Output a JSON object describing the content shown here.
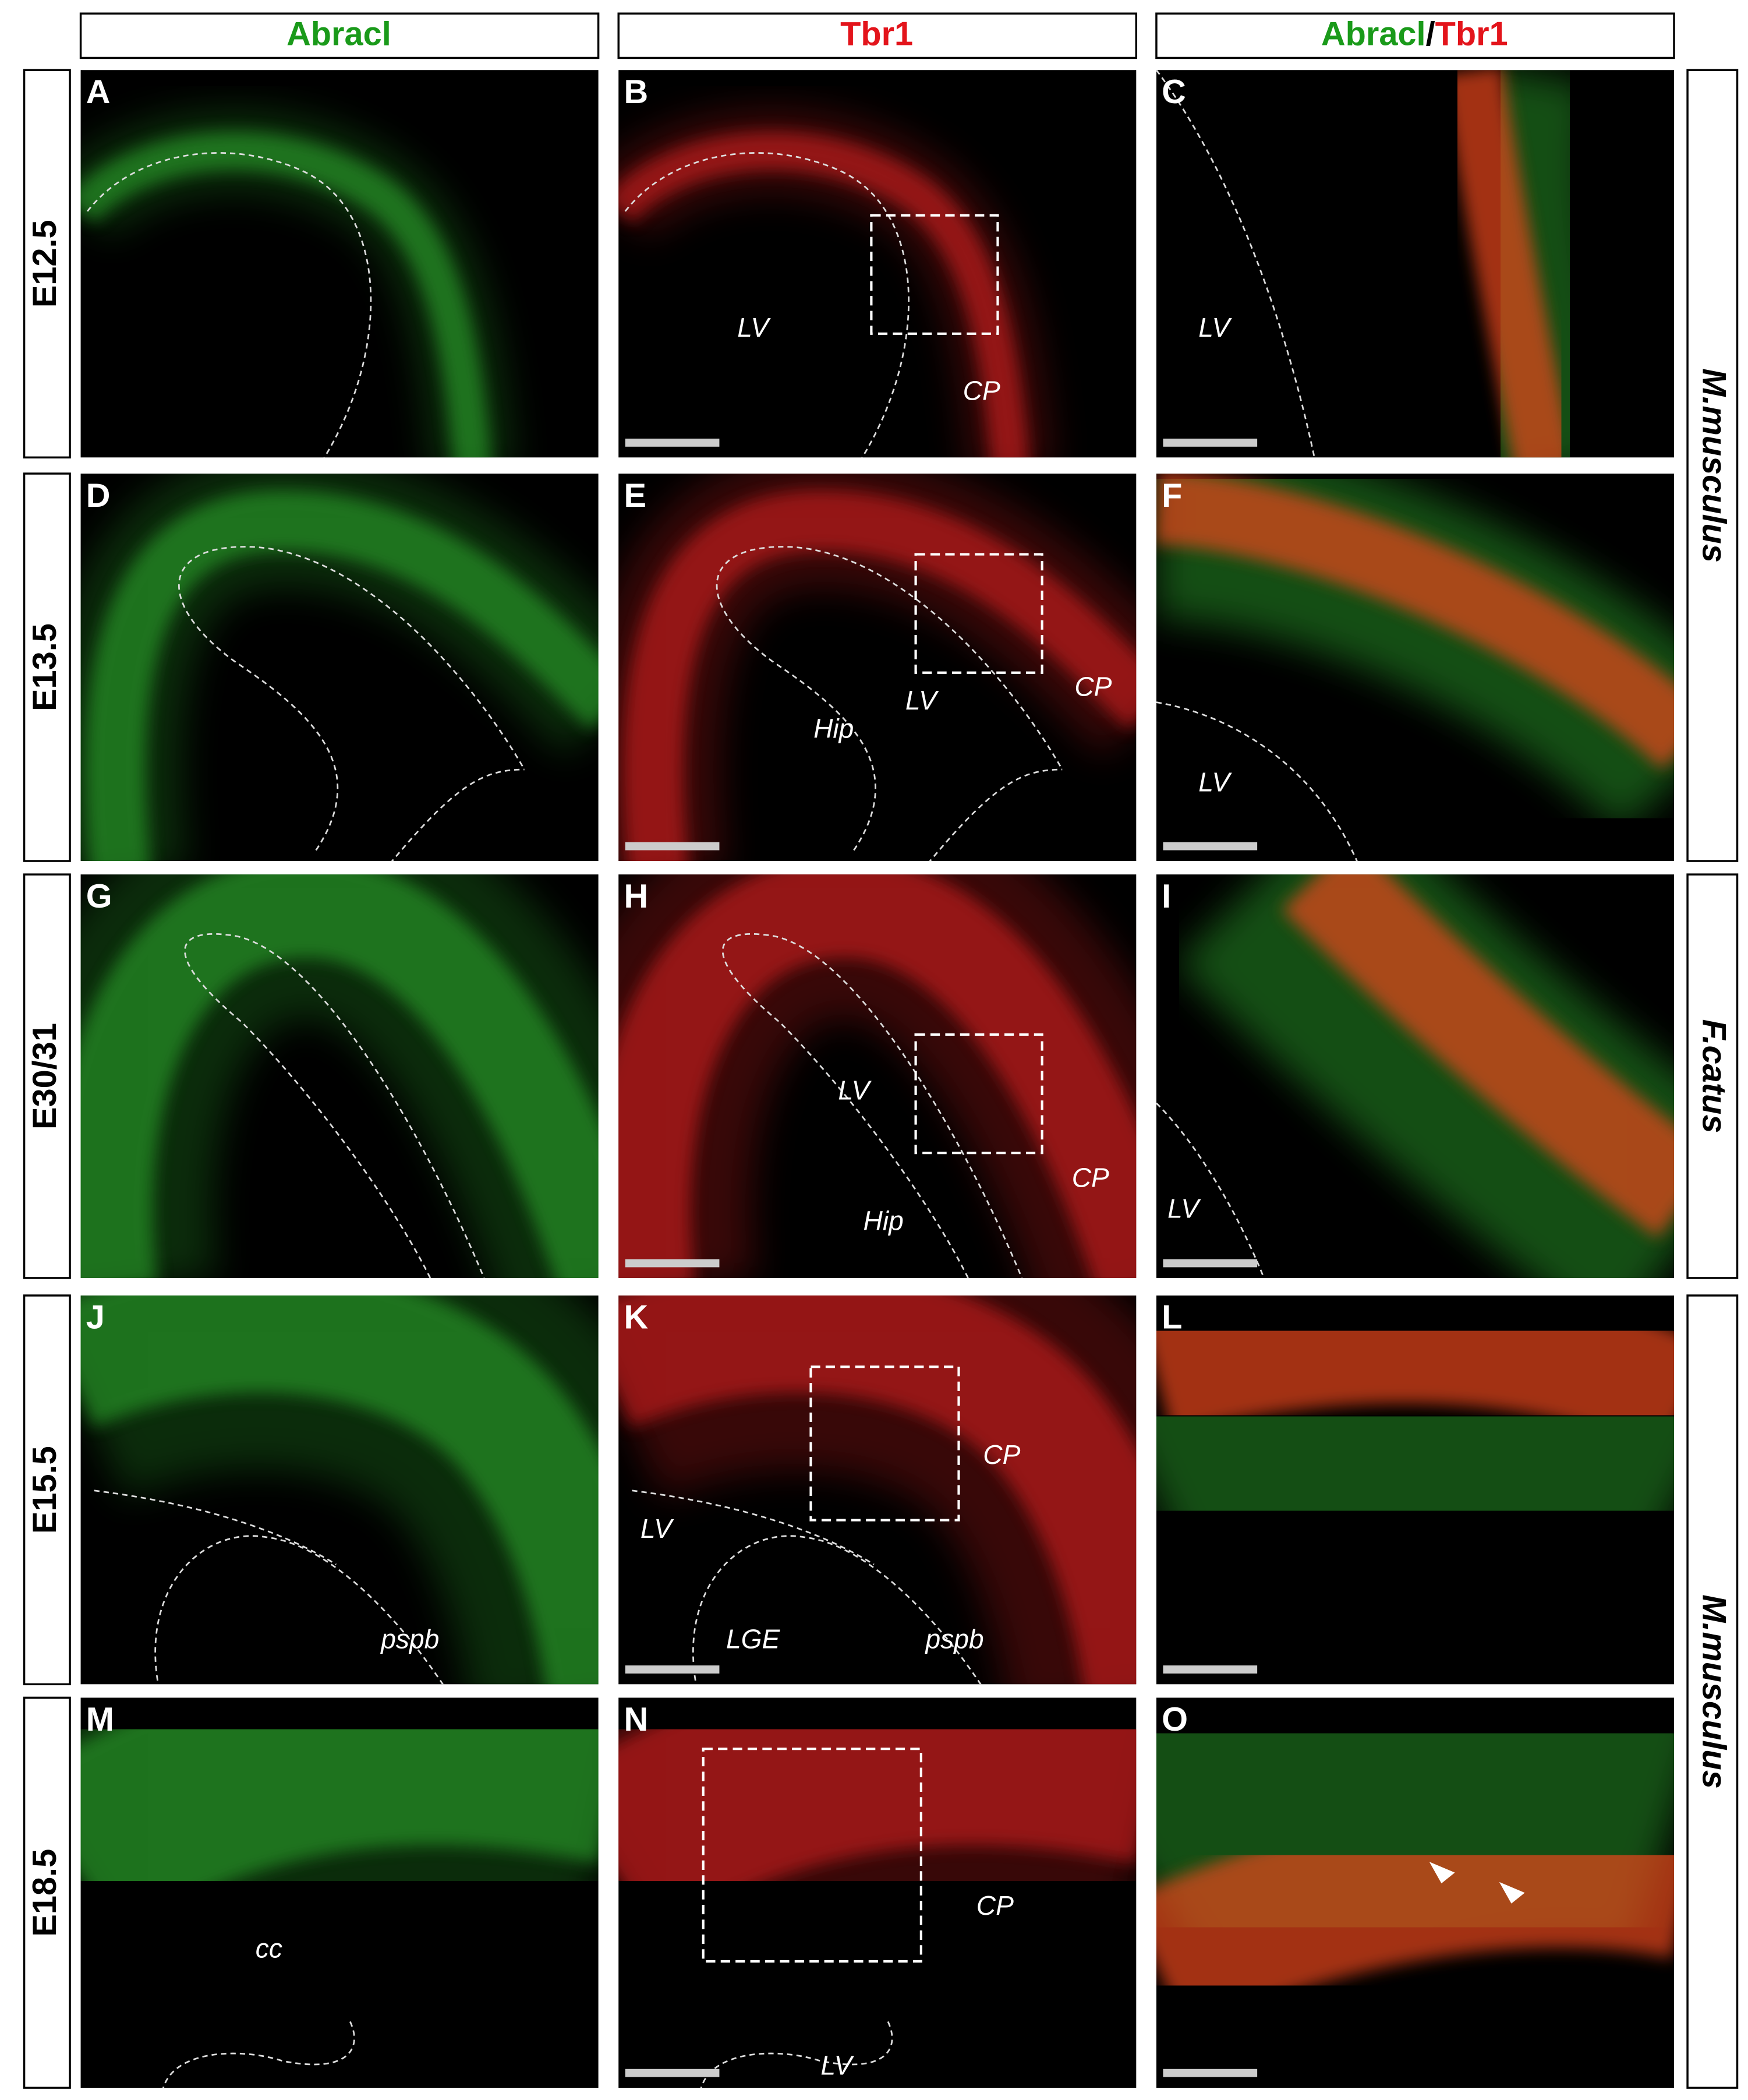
{
  "headers": [
    "Abracl",
    "Tbr1",
    [
      "Abracl",
      "/",
      "Tbr1"
    ]
  ],
  "row_labels": [
    "E12.5",
    "E13.5",
    "E30/31",
    "E15.5",
    "E18.5"
  ],
  "species_labels": [
    "M.musculus",
    "F.catus",
    "M.musculus"
  ],
  "panels": [
    {
      "letter": "A",
      "labels": []
    },
    {
      "letter": "B",
      "labels": [
        "LV",
        "CP"
      ]
    },
    {
      "letter": "C",
      "labels": [
        "LV"
      ]
    },
    {
      "letter": "D",
      "labels": []
    },
    {
      "letter": "E",
      "labels": [
        "Hip",
        "LV",
        "CP"
      ]
    },
    {
      "letter": "F",
      "labels": [
        "LV"
      ]
    },
    {
      "letter": "G",
      "labels": []
    },
    {
      "letter": "H",
      "labels": [
        "LV",
        "CP",
        "Hip"
      ]
    },
    {
      "letter": "I",
      "labels": [
        "LV"
      ]
    },
    {
      "letter": "J",
      "labels": [
        "pspb"
      ]
    },
    {
      "letter": "K",
      "labels": [
        "CP",
        "LV",
        "LGE",
        "pspb"
      ]
    },
    {
      "letter": "L",
      "labels": []
    },
    {
      "letter": "M",
      "labels": [
        "cc"
      ]
    },
    {
      "letter": "N",
      "labels": [
        "CP",
        "LV"
      ]
    },
    {
      "letter": "O",
      "labels": []
    }
  ]
}
